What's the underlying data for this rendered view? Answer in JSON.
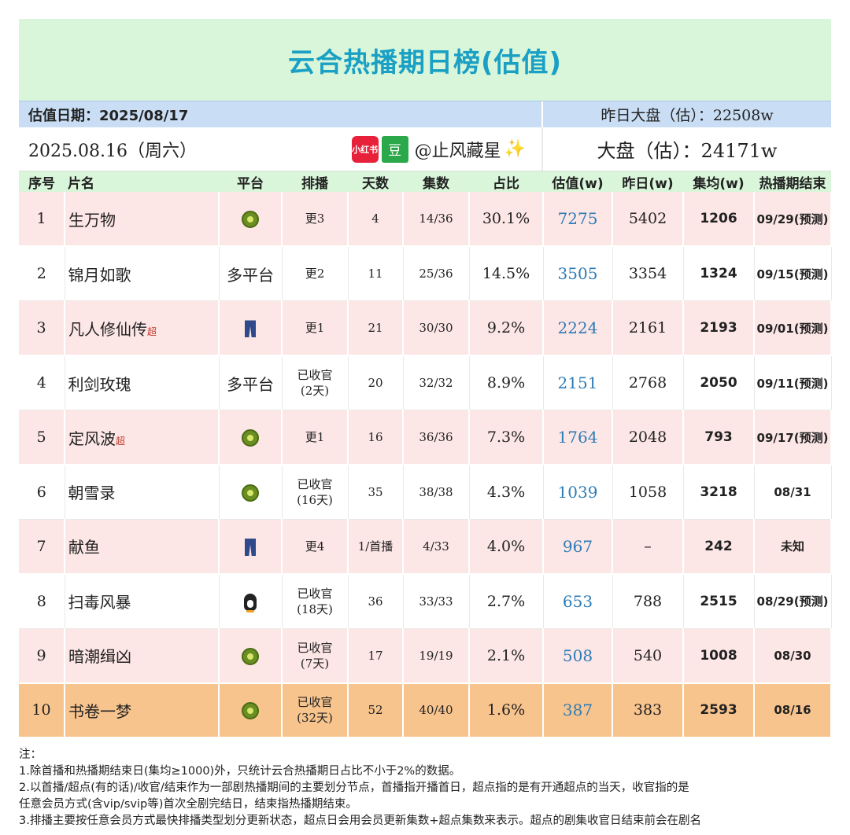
{
  "title": "云合热播期日榜(估值)",
  "estimate_date": "估值日期：2025/08/17",
  "yesterday_total": "昨日大盘（估）：22508w",
  "date_line": "2025.08.16（周六）",
  "badge_xhs": "小红书",
  "badge_douban": "豆",
  "handle": "@止风藏星",
  "sparkle": "✨",
  "total": "大盘（估）：24171w",
  "columns": [
    "序号",
    "片名",
    "平台",
    "排播",
    "天数",
    "集数",
    "占比",
    "估值(w)",
    "昨日(w)",
    "集均(w)",
    "热播期结束"
  ],
  "rows": [
    {
      "rank": "1",
      "name": "生万物",
      "sup": "",
      "platform_icon": "kiwi-icon",
      "platform_text": "",
      "sched": "更3",
      "days": "4",
      "eps": "14/36",
      "share": "30.1%",
      "est": "7275",
      "yest": "5402",
      "avg": "1206",
      "end": "09/29(预测)",
      "bg": "pink"
    },
    {
      "rank": "2",
      "name": "锦月如歌",
      "sup": "",
      "platform_icon": "",
      "platform_text": "多平台",
      "sched": "更2",
      "days": "11",
      "eps": "25/36",
      "share": "14.5%",
      "est": "3505",
      "yest": "3354",
      "avg": "1324",
      "end": "09/15(预测)",
      "bg": "white"
    },
    {
      "rank": "3",
      "name": "凡人修仙传",
      "sup": "超",
      "platform_icon": "jeans-icon",
      "platform_text": "",
      "sched": "更1",
      "days": "21",
      "eps": "30/30",
      "share": "9.2%",
      "est": "2224",
      "yest": "2161",
      "avg": "2193",
      "end": "09/01(预测)",
      "bg": "pink"
    },
    {
      "rank": "4",
      "name": "利剑玫瑰",
      "sup": "",
      "platform_icon": "",
      "platform_text": "多平台",
      "sched": "已收官\n(2天)",
      "days": "20",
      "eps": "32/32",
      "share": "8.9%",
      "est": "2151",
      "yest": "2768",
      "avg": "2050",
      "end": "09/11(预测)",
      "bg": "white"
    },
    {
      "rank": "5",
      "name": "定风波",
      "sup": "超",
      "platform_icon": "kiwi-icon",
      "platform_text": "",
      "sched": "更1",
      "days": "16",
      "eps": "36/36",
      "share": "7.3%",
      "est": "1764",
      "yest": "2048",
      "avg": "793",
      "end": "09/17(预测)",
      "bg": "pink"
    },
    {
      "rank": "6",
      "name": "朝雪录",
      "sup": "",
      "platform_icon": "kiwi-icon",
      "platform_text": "",
      "sched": "已收官\n(16天)",
      "days": "35",
      "eps": "38/38",
      "share": "4.3%",
      "est": "1039",
      "yest": "1058",
      "avg": "3218",
      "end": "08/31",
      "bg": "white"
    },
    {
      "rank": "7",
      "name": "献鱼",
      "sup": "",
      "platform_icon": "jeans-icon",
      "platform_text": "",
      "sched": "更4",
      "days": "1/首播",
      "eps": "4/33",
      "share": "4.0%",
      "est": "967",
      "yest": "–",
      "avg": "242",
      "end": "未知",
      "bg": "pink"
    },
    {
      "rank": "8",
      "name": "扫毒风暴",
      "sup": "",
      "platform_icon": "penguin-icon",
      "platform_text": "",
      "sched": "已收官\n(18天)",
      "days": "36",
      "eps": "33/33",
      "share": "2.7%",
      "est": "653",
      "yest": "788",
      "avg": "2515",
      "end": "08/29(预测)",
      "bg": "white"
    },
    {
      "rank": "9",
      "name": "暗潮缉凶",
      "sup": "",
      "platform_icon": "kiwi-icon",
      "platform_text": "",
      "sched": "已收官\n(7天)",
      "days": "17",
      "eps": "19/19",
      "share": "2.1%",
      "est": "508",
      "yest": "540",
      "avg": "1008",
      "end": "08/30",
      "bg": "pink"
    },
    {
      "rank": "10",
      "name": "书卷一梦",
      "sup": "",
      "platform_icon": "kiwi-icon",
      "platform_text": "",
      "sched": "已收官\n(32天)",
      "days": "52",
      "eps": "40/40",
      "share": "1.6%",
      "est": "387",
      "yest": "383",
      "avg": "2593",
      "end": "08/16",
      "bg": "orange"
    }
  ],
  "notes": [
    "注：",
    "1.除首播和热播期结束日(集均≥1000)外，只统计云合热播期日占比不小于2%的数据。",
    "2.以首播/超点(有的话)/收官/结束作为一部剧热播期间的主要划分节点，首播指开播首日，超点指的是有开通超点的当天，收官指的是",
    "任意会员方式(含vip/svip等)首次全剧完结日，结束指热播期结束。",
    "3.排播主要按任意会员方式最快排播类型划分更新状态，超点日会用会员更新集数+超点集数来表示。超点的剧集收官日结束前会在剧名"
  ]
}
